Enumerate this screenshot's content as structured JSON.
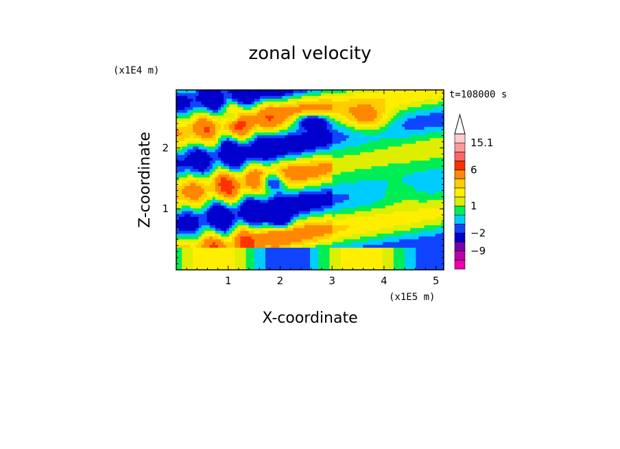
{
  "chart_data": {
    "type": "heatmap",
    "title": "zonal velocity",
    "xlabel": "X-coordinate",
    "ylabel": "Z-coordinate",
    "x_unit": "(x1E5 m)",
    "y_unit": "(x1E4 m)",
    "time_label": "t=108000 s",
    "xlim": [
      0,
      5.15
    ],
    "ylim": [
      0,
      2.95
    ],
    "x_ticks": [
      "1",
      "2",
      "3",
      "4",
      "5"
    ],
    "y_ticks": [
      "1",
      "2"
    ],
    "colorbar": {
      "levels": [
        -15,
        -12,
        -9,
        -6,
        -2,
        -1,
        0,
        1,
        2,
        3,
        4,
        6,
        9,
        12,
        15.1
      ],
      "colors": [
        "#ee00aa",
        "#bb00aa",
        "#7700aa",
        "#0000cc",
        "#1144ff",
        "#00ccff",
        "#00ee55",
        "#ddee00",
        "#ffee00",
        "#ffcc00",
        "#ff8800",
        "#ff3300",
        "#ff6666",
        "#ff9999",
        "#ffcccc"
      ],
      "labels": [
        "15.1",
        "6",
        "1",
        "-2",
        "-9"
      ]
    }
  }
}
